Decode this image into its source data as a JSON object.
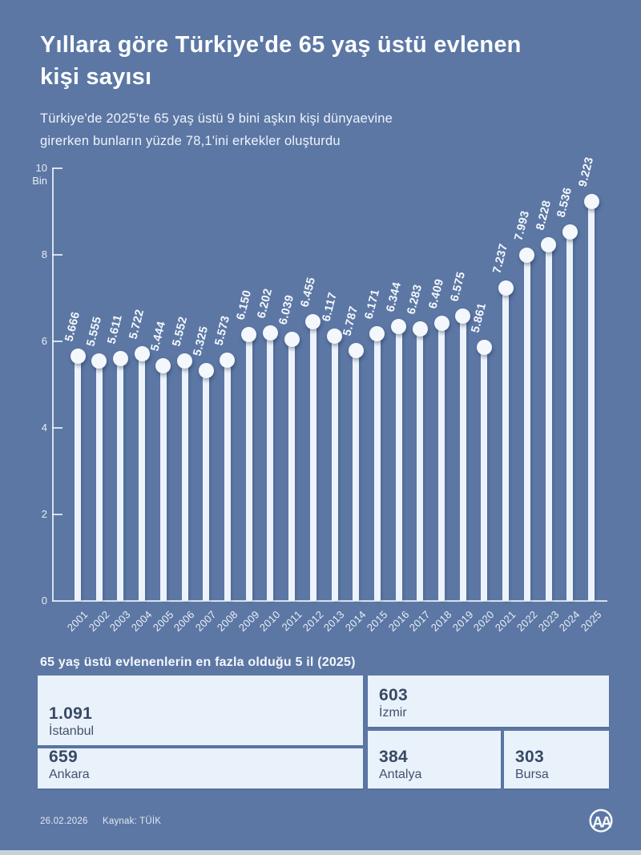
{
  "header": {
    "title_lines": [
      "Yıllara göre Türkiye'de 65 yaş üstü evlenen",
      "kişi sayısı"
    ],
    "subtitle_lines": [
      "Türkiye'de 2025'te 65 yaş üstü 9 bini aşkın kişi dünyaevine",
      "girerken bunların yüzde 78,1'ini erkekler oluşturdu"
    ]
  },
  "chart_data": {
    "type": "bar",
    "style": "lollipop",
    "title": "Yıllara göre Türkiye'de 65 yaş üstü evlenen kişi sayısı",
    "xlabel": "",
    "ylabel": "Bin",
    "ylim": [
      0,
      10000
    ],
    "yticks_thousands": [
      0,
      2,
      4,
      6,
      8,
      10
    ],
    "grid": false,
    "legend_position": "none",
    "categories": [
      "2001",
      "2002",
      "2003",
      "2004",
      "2005",
      "2006",
      "2007",
      "2008",
      "2009",
      "2010",
      "2011",
      "2012",
      "2013",
      "2014",
      "2015",
      "2016",
      "2017",
      "2018",
      "2019",
      "2020",
      "2021",
      "2022",
      "2023",
      "2024",
      "2025"
    ],
    "values": [
      5666,
      5555,
      5611,
      5722,
      5444,
      5552,
      5325,
      5573,
      6150,
      6202,
      6039,
      6455,
      6117,
      5787,
      6171,
      6344,
      6283,
      6409,
      6575,
      5861,
      7237,
      7993,
      8228,
      8536,
      9223
    ],
    "value_labels": [
      "5.666",
      "5.555",
      "5.611",
      "5.722",
      "5.444",
      "5.552",
      "5.325",
      "5.573",
      "6.150",
      "6.202",
      "6.039",
      "6.455",
      "6.117",
      "5.787",
      "6.171",
      "6.344",
      "6.283",
      "6.409",
      "6.575",
      "5.861",
      "7.237",
      "7.993",
      "8.228",
      "8.536",
      "9.223"
    ]
  },
  "top_cities": {
    "heading": "65 yaş üstü evlenenlerin en fazla olduğu 5 il (2025)",
    "cities": [
      {
        "value": "1.091",
        "name": "İstanbul"
      },
      {
        "value": "603",
        "name": "İzmir"
      },
      {
        "value": "659",
        "name": "Ankara"
      },
      {
        "value": "384",
        "name": "Antalya"
      },
      {
        "value": "303",
        "name": "Bursa"
      }
    ]
  },
  "footer": {
    "date": "26.02.2026",
    "source": "Kaynak: TÜİK",
    "agency_logo": "AA"
  },
  "colors": {
    "background": "#5c77a4",
    "lollipop": "#edf3fb",
    "cell_bg": "#e9f1fb",
    "cell_text": "#394964",
    "text_light": "#f4f8fd"
  }
}
